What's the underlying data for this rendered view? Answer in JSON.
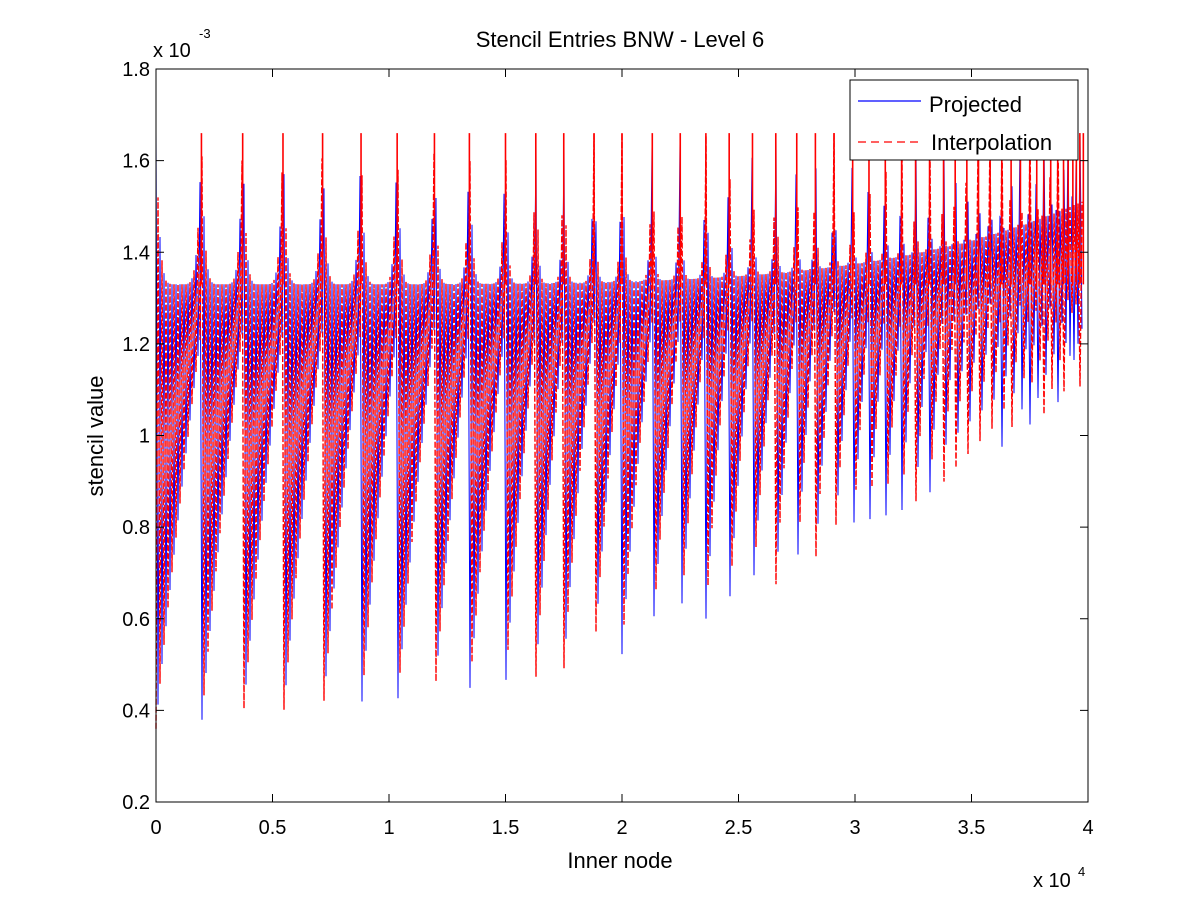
{
  "chart_data": {
    "type": "line",
    "title": "Stencil Entries BNW - Level 6",
    "xlabel": "Inner node",
    "ylabel": "stencil value",
    "x_multiplier": {
      "base": "x 10",
      "exponent": "4"
    },
    "y_multiplier": {
      "base": "x 10",
      "exponent": "-3"
    },
    "xlim": [
      0,
      40000
    ],
    "ylim": [
      0.0002,
      0.0018
    ],
    "x_tick_values": [
      0,
      5000,
      10000,
      15000,
      20000,
      25000,
      30000,
      35000,
      40000
    ],
    "x_tick_labels": [
      "0",
      "0.5",
      "1",
      "1.5",
      "2",
      "2.5",
      "3",
      "3.5",
      "4"
    ],
    "y_tick_values": [
      0.0002,
      0.0004,
      0.0006,
      0.0008,
      0.001,
      0.0012,
      0.0014,
      0.0016,
      0.0018
    ],
    "y_tick_labels": [
      "0.2",
      "0.4",
      "0.6",
      "0.8",
      "1",
      "1.2",
      "1.4",
      "1.6",
      "1.8"
    ],
    "grid": false,
    "legend_position": "top-right",
    "series": [
      {
        "name": "Projected",
        "color": "#0000ff",
        "style": "solid"
      },
      {
        "name": "Interpolation",
        "color": "#ff0000",
        "style": "dashed"
      }
    ],
    "block_structure": {
      "description_units": "x in inner-node index, y in stencil value",
      "block_boundaries": [
        0,
        1950,
        3720,
        5450,
        7150,
        8800,
        10350,
        11950,
        13450,
        15000,
        16300,
        17500,
        18800,
        20000,
        21300,
        22500,
        23600,
        24600,
        25600,
        26600,
        27500,
        28300,
        29100,
        29900,
        30600,
        31300,
        32000,
        32600,
        33200,
        33800,
        34300,
        34800,
        35300,
        35800,
        36300,
        36700,
        37100,
        37500,
        37800,
        38100,
        38400,
        38700,
        38950,
        39150,
        39350,
        39500,
        39650,
        39800
      ],
      "envelope_upper_min": 0.00133,
      "envelope_upper_peak": 0.00166,
      "envelope_lower_start": 0.00036,
      "envelope_lower_end": 0.0011
    }
  }
}
